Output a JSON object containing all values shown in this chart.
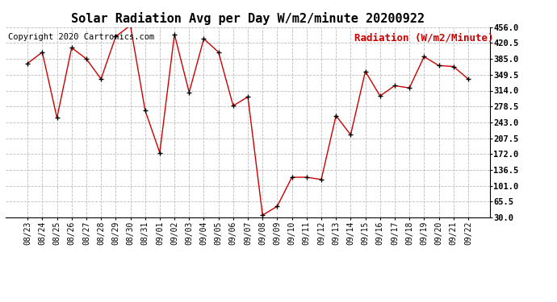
{
  "title": "Solar Radiation Avg per Day W/m2/minute 20200922",
  "copyright_text": "Copyright 2020 Cartronics.com",
  "legend_text": "Radiation (W/m2/Minute)",
  "dates": [
    "08/23",
    "08/24",
    "08/25",
    "08/26",
    "08/27",
    "08/28",
    "08/29",
    "08/30",
    "08/31",
    "09/01",
    "09/02",
    "09/03",
    "09/04",
    "09/05",
    "09/06",
    "09/07",
    "09/08",
    "09/09",
    "09/10",
    "09/11",
    "09/12",
    "09/13",
    "09/14",
    "09/15",
    "09/16",
    "09/17",
    "09/18",
    "09/19",
    "09/20",
    "09/21",
    "09/22"
  ],
  "values": [
    375,
    400,
    253,
    410,
    385,
    340,
    435,
    460,
    270,
    175,
    440,
    310,
    430,
    400,
    280,
    300,
    35,
    55,
    120,
    120,
    115,
    258,
    215,
    357,
    302,
    325,
    320,
    390,
    370,
    368,
    340
  ],
  "line_color": "#cc0000",
  "marker_color": "#000000",
  "background_color": "#ffffff",
  "grid_color": "#bbbbbb",
  "yticks": [
    30.0,
    65.5,
    101.0,
    136.5,
    172.0,
    207.5,
    243.0,
    278.5,
    314.0,
    349.5,
    385.0,
    420.5,
    456.0
  ],
  "ylim_min": 30.0,
  "ylim_max": 456.0,
  "title_fontsize": 11,
  "legend_fontsize": 9,
  "copyright_fontsize": 7.5,
  "tick_fontsize": 7,
  "ytick_fontsize": 7.5
}
